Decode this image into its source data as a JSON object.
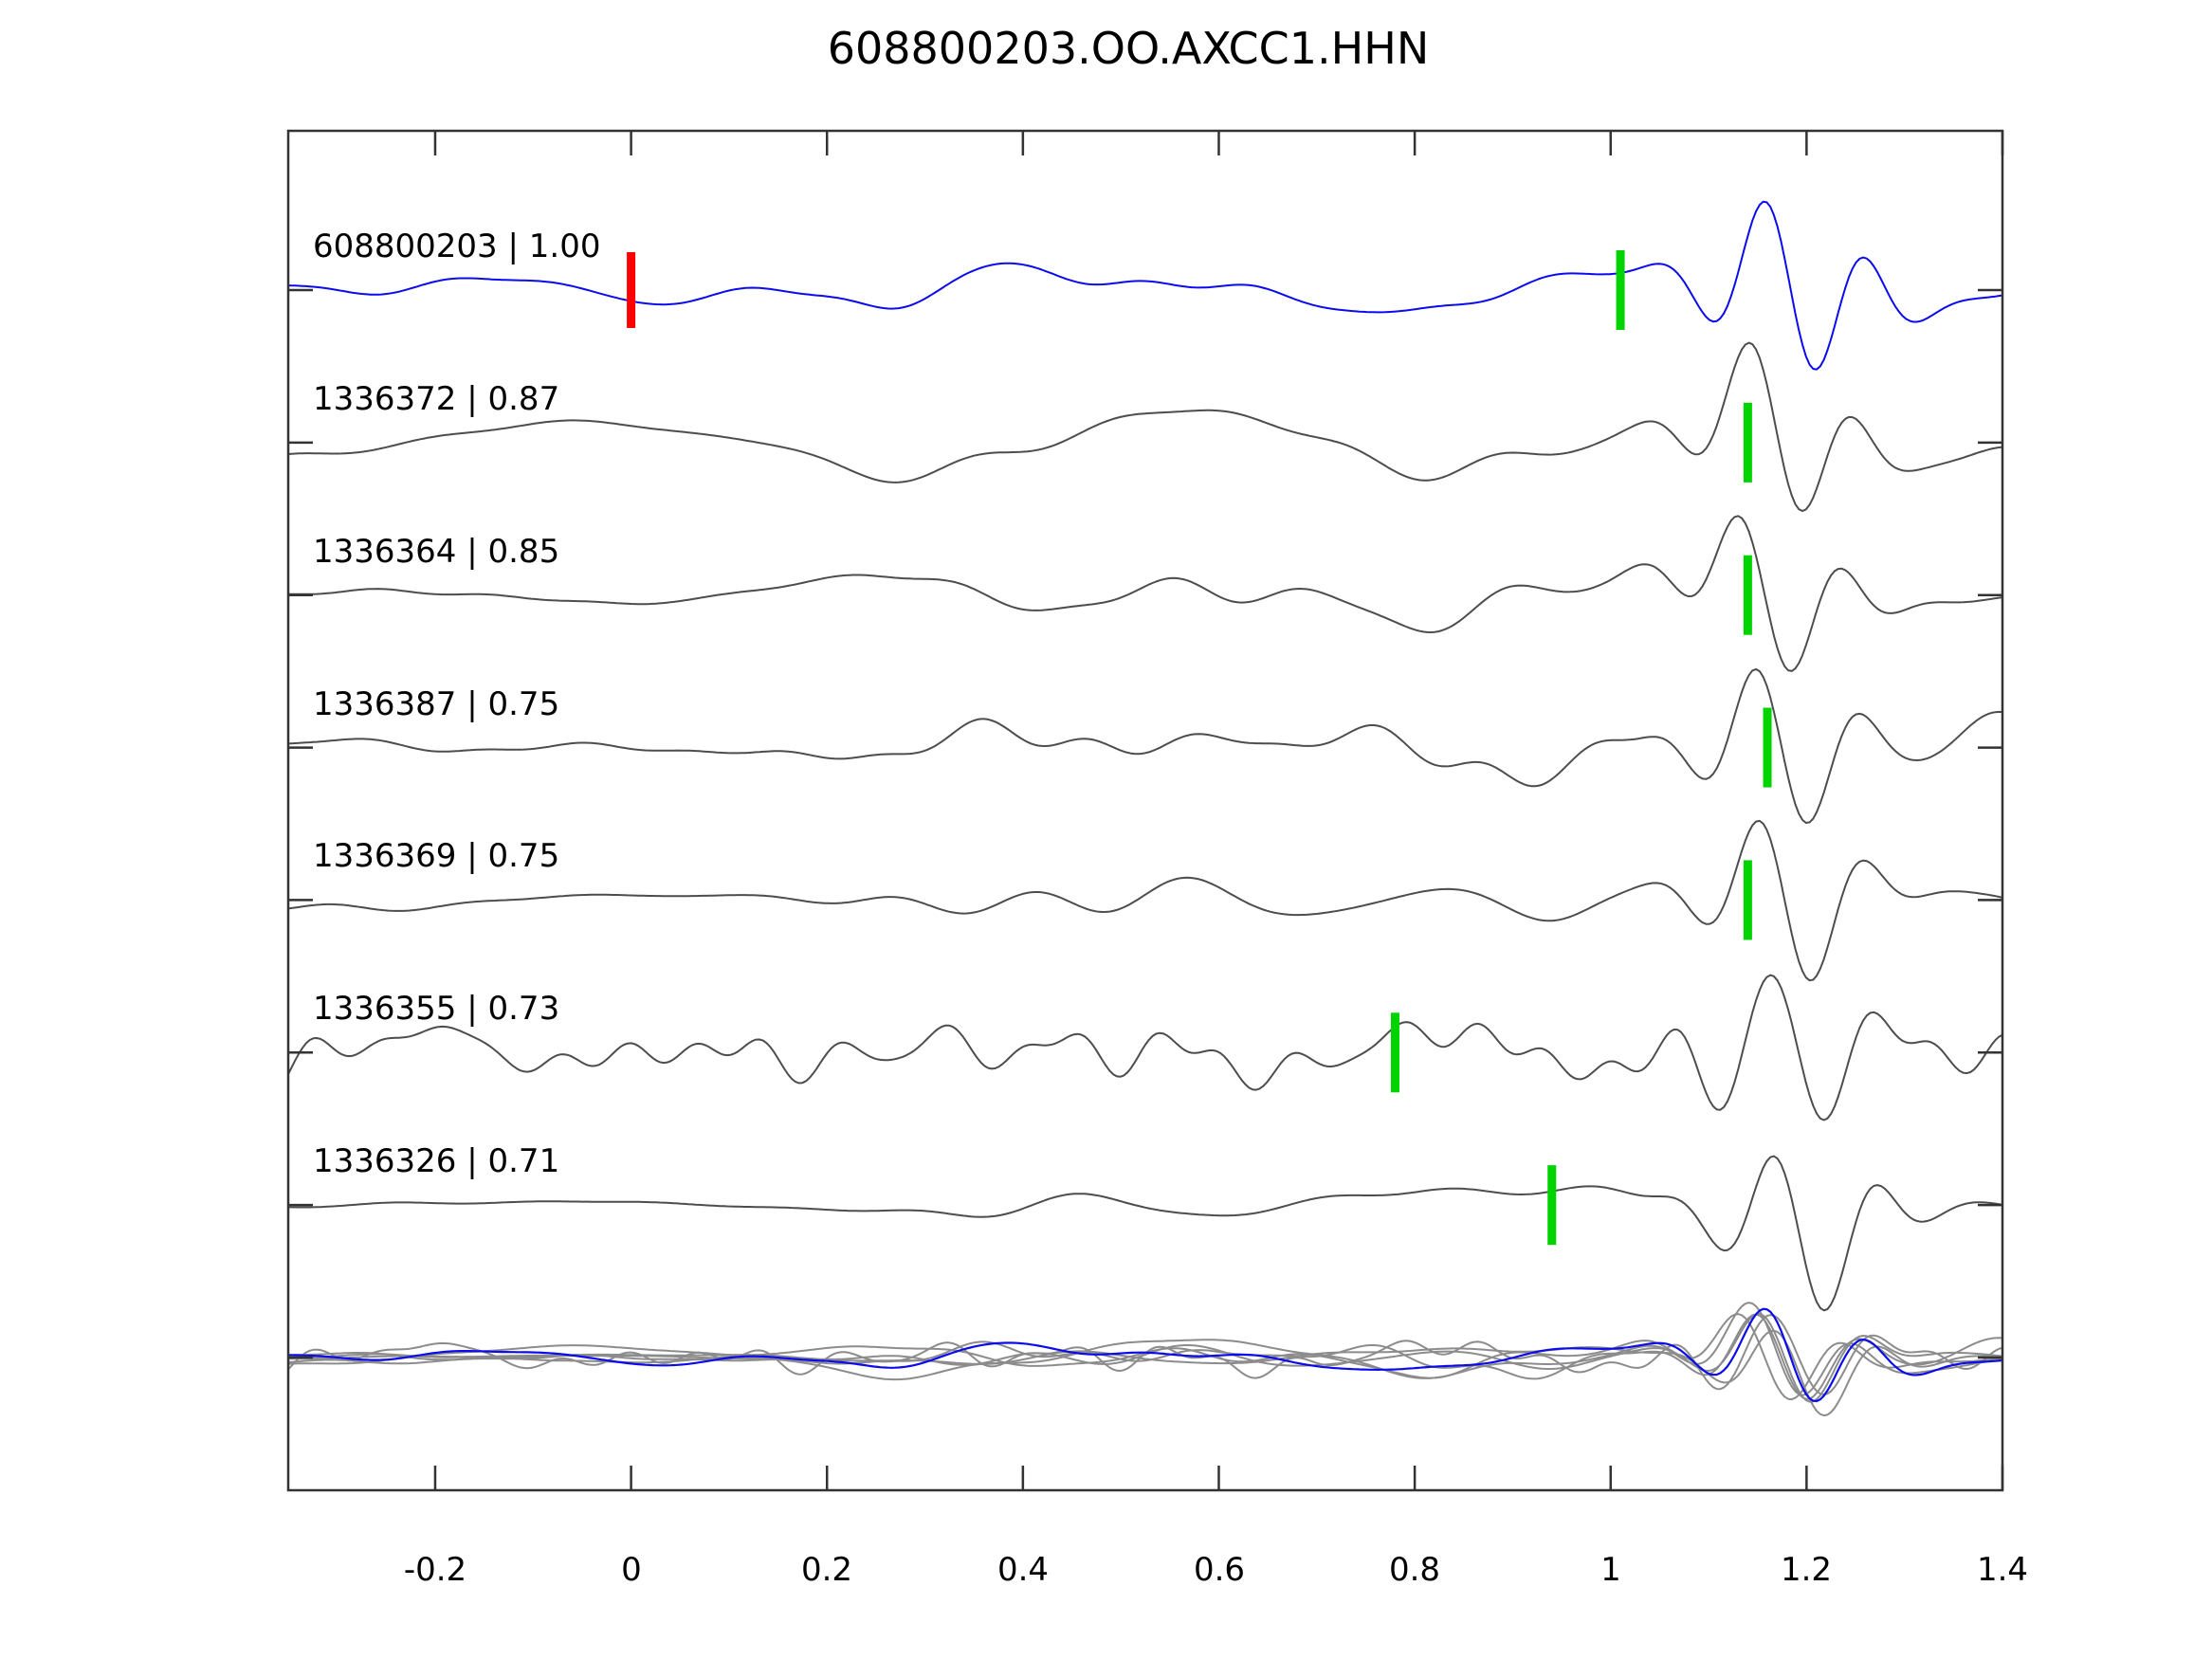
{
  "title": "608800203.OO.AXCC1.HHN",
  "chart_data": {
    "type": "line",
    "title": "608800203.OO.AXCC1.HHN",
    "xlabel": "",
    "ylabel": "",
    "xlim": [
      -0.35,
      1.4
    ],
    "grid": false,
    "legend_position": "none",
    "tick_direction": "in",
    "x_ticks": [
      -0.2,
      0,
      0.2,
      0.4,
      0.6,
      0.8,
      1,
      1.2,
      1.4
    ],
    "x_tick_labels": [
      "-0.2",
      "0",
      "0.2",
      "0.4",
      "0.6",
      "0.8",
      "1",
      "1.2",
      "1.4"
    ],
    "colors": {
      "template_trace": "#0b0bee",
      "detection_trace": "#4d4d4d",
      "overlay_trace": "#8c8c8c",
      "pick_green": "#00d400",
      "pick_red": "#ff0000",
      "axis": "#333333",
      "background": "#ffffff"
    },
    "traces": [
      {
        "id": "608800203",
        "cc": "1.00",
        "label": "608800203 | 1.00",
        "role": "template",
        "picks": [
          {
            "time": 0.0,
            "color": "#ff0000"
          },
          {
            "time": 1.01,
            "color": "#00d400"
          }
        ],
        "synth": {
          "seed": 11,
          "base": 25,
          "startAmp": 0.5,
          "rampStart": 0.02,
          "rampLen": 0.3,
          "freqMul": 1.0,
          "eventAmp": 95,
          "eventCenter": 1.185
        }
      },
      {
        "id": "1336372",
        "cc": "0.87",
        "label": "1336372 | 0.87",
        "role": "detection",
        "picks": [
          {
            "time": 1.14,
            "color": "#00d400"
          }
        ],
        "synth": {
          "seed": 22,
          "base": 33,
          "startAmp": 0.85,
          "rampStart": 0.0,
          "rampLen": 0.35,
          "freqMul": 1.0,
          "eventAmp": 82,
          "eventCenter": 1.17
        }
      },
      {
        "id": "1336364",
        "cc": "0.85",
        "label": "1336364 | 0.85",
        "role": "detection",
        "picks": [
          {
            "time": 1.14,
            "color": "#00d400"
          }
        ],
        "synth": {
          "seed": 33,
          "base": 30,
          "startAmp": 0.22,
          "rampStart": 0.02,
          "rampLen": 0.35,
          "freqMul": 1.0,
          "eventAmp": 80,
          "eventCenter": 1.16
        }
      },
      {
        "id": "1336387",
        "cc": "0.75",
        "label": "1336387 | 0.75",
        "role": "detection",
        "picks": [
          {
            "time": 1.16,
            "color": "#00d400"
          }
        ],
        "synth": {
          "seed": 44,
          "base": 32,
          "startAmp": 0.3,
          "rampStart": 0.05,
          "rampLen": 0.35,
          "freqMul": 1.0,
          "eventAmp": 84,
          "eventCenter": 1.175
        }
      },
      {
        "id": "1336369",
        "cc": "0.75",
        "label": "1336369 | 0.75",
        "role": "detection",
        "picks": [
          {
            "time": 1.14,
            "color": "#00d400"
          }
        ],
        "synth": {
          "seed": 55,
          "base": 30,
          "startAmp": 0.62,
          "rampStart": 0.0,
          "rampLen": 0.3,
          "freqMul": 1.0,
          "eventAmp": 82,
          "eventCenter": 1.18
        }
      },
      {
        "id": "1336355",
        "cc": "0.73",
        "label": "1336355 | 0.73",
        "role": "detection",
        "picks": [
          {
            "time": 0.78,
            "color": "#00d400"
          }
        ],
        "synth": {
          "seed": 66,
          "base": 40,
          "startAmp": 1.0,
          "rampStart": 0.0,
          "rampLen": 0.3,
          "freqMul": 1.55,
          "eventAmp": 72,
          "eventCenter": 1.19
        }
      },
      {
        "id": "1336326",
        "cc": "0.71",
        "label": "1336326 | 0.71",
        "role": "detection",
        "picks": [
          {
            "time": 0.94,
            "color": "#00d400"
          }
        ],
        "synth": {
          "seed": 77,
          "base": 26,
          "startAmp": 0.24,
          "rampStart": 0.1,
          "rampLen": 0.4,
          "freqMul": 0.85,
          "eventAmp": 86,
          "eventCenter": 1.195
        }
      }
    ],
    "overlay": {
      "description": "all detection traces overlaid in light gray with the blue template on top",
      "scale": 0.55,
      "detection_color": "#8c8c8c",
      "template_color": "#0b0bee"
    }
  }
}
